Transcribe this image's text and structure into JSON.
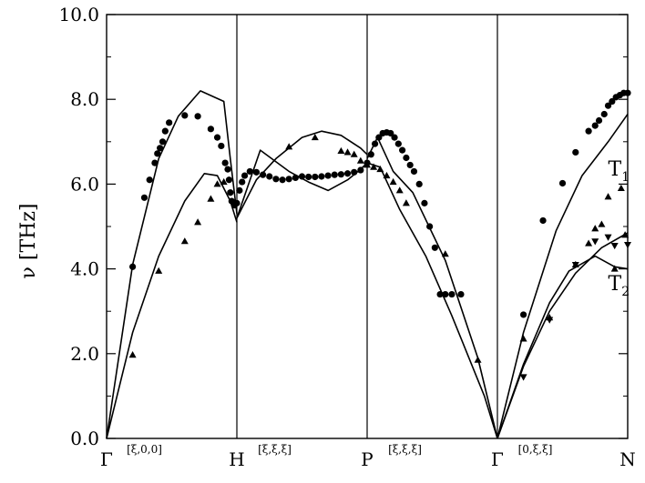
{
  "chart_data": {
    "type": "line",
    "title": "",
    "ylabel": "ν [THz]",
    "ylim": [
      0,
      10
    ],
    "yticks": [
      "0.0",
      "2.0",
      "4.0",
      "6.0",
      "8.0",
      "10.0"
    ],
    "x_symmetry_points": [
      {
        "label": "Γ",
        "x": 0
      },
      {
        "label": "H",
        "x": 1
      },
      {
        "label": "P",
        "x": 2
      },
      {
        "label": "Γ",
        "x": 3
      },
      {
        "label": "N",
        "x": 4
      }
    ],
    "segment_labels": [
      {
        "label": "[ξ,0,0]",
        "x": 0.5
      },
      {
        "label": "[ξ,ξ,ξ]",
        "x": 1.5
      },
      {
        "label": "[ξ,ξ,ξ]",
        "x": 2.5
      },
      {
        "label": "[0,ξ,ξ]",
        "x": 3.5
      }
    ],
    "branch_labels": [
      {
        "main": "T",
        "sub": "1",
        "x": 3.85,
        "y": 6.2
      },
      {
        "main": "T",
        "sub": "2",
        "x": 3.85,
        "y": 3.5
      }
    ],
    "series": [
      {
        "kind": "line",
        "x": [
          0,
          0.2,
          0.4,
          0.55,
          0.72,
          0.9,
          0.95,
          1
        ],
        "y": [
          0,
          4.1,
          6.6,
          7.6,
          8.2,
          7.95,
          6.6,
          5.3
        ]
      },
      {
        "kind": "line",
        "x": [
          0,
          0.2,
          0.4,
          0.6,
          0.75,
          0.85,
          0.95,
          1
        ],
        "y": [
          0,
          2.5,
          4.3,
          5.6,
          6.25,
          6.2,
          5.6,
          5.1
        ]
      },
      {
        "kind": "line",
        "x": [
          1,
          1.18,
          1.4,
          1.55,
          1.7,
          1.85,
          1.95,
          2
        ],
        "y": [
          5.2,
          6.8,
          6.3,
          6.05,
          5.85,
          6.1,
          6.35,
          6.5
        ]
      },
      {
        "kind": "line",
        "x": [
          1,
          1.15,
          1.3,
          1.5,
          1.65,
          1.8,
          1.95,
          2
        ],
        "y": [
          5.2,
          6.1,
          6.6,
          7.1,
          7.25,
          7.15,
          6.85,
          6.7
        ]
      },
      {
        "kind": "line",
        "x": [
          2,
          2.08,
          2.2,
          2.35,
          2.6,
          2.85,
          3
        ],
        "y": [
          6.6,
          7.1,
          6.3,
          5.8,
          4.2,
          1.9,
          0
        ]
      },
      {
        "kind": "line",
        "x": [
          2,
          2.1,
          2.25,
          2.45,
          2.65,
          2.9,
          3
        ],
        "y": [
          6.5,
          6.4,
          5.4,
          4.3,
          2.9,
          1.0,
          0
        ]
      },
      {
        "kind": "line",
        "x": [
          3,
          3.2,
          3.45,
          3.65,
          3.85,
          4
        ],
        "y": [
          0,
          2.5,
          4.9,
          6.2,
          7.0,
          7.65
        ]
      },
      {
        "kind": "line",
        "x": [
          3,
          3.2,
          3.4,
          3.6,
          3.8,
          4
        ],
        "y": [
          0,
          1.7,
          3.0,
          3.9,
          4.5,
          4.85
        ]
      },
      {
        "kind": "line",
        "x": [
          3,
          3.2,
          3.4,
          3.55,
          3.75,
          3.9,
          4
        ],
        "y": [
          0,
          1.75,
          3.2,
          3.95,
          4.3,
          4.05,
          4.0
        ]
      },
      {
        "kind": "scatter",
        "marker": "circle",
        "x": [
          0.2,
          0.29,
          0.33,
          0.37,
          0.39,
          0.41,
          0.43,
          0.45,
          0.48,
          0.6,
          0.7,
          0.8,
          0.85,
          0.88,
          0.91,
          0.93,
          0.94,
          0.95,
          0.96,
          0.98,
          1.0,
          1.02,
          1.04,
          1.06,
          1.1,
          1.15,
          1.2,
          1.25,
          1.3,
          1.35,
          1.4,
          1.45,
          1.5,
          1.55,
          1.6,
          1.65,
          1.7,
          1.75,
          1.8,
          1.85,
          1.9,
          1.95,
          2.0,
          2.03,
          2.06,
          2.09,
          2.12,
          2.15,
          2.18,
          2.21,
          2.24,
          2.27,
          2.3,
          2.33,
          2.36,
          2.4,
          2.44,
          2.48,
          2.52,
          2.56,
          2.6,
          2.65,
          2.72,
          3.2,
          3.35,
          3.5,
          3.6,
          3.7,
          3.75,
          3.78,
          3.82,
          3.85,
          3.88,
          3.91,
          3.94,
          3.97,
          4.0
        ],
        "y": [
          4.05,
          5.68,
          6.1,
          6.5,
          6.72,
          6.85,
          7.0,
          7.25,
          7.45,
          7.62,
          7.6,
          7.3,
          7.1,
          6.9,
          6.5,
          6.35,
          6.1,
          5.8,
          5.6,
          5.5,
          5.55,
          5.85,
          6.05,
          6.2,
          6.3,
          6.28,
          6.22,
          6.18,
          6.12,
          6.1,
          6.12,
          6.15,
          6.18,
          6.17,
          6.17,
          6.18,
          6.2,
          6.22,
          6.23,
          6.25,
          6.28,
          6.33,
          6.5,
          6.7,
          6.95,
          7.1,
          7.2,
          7.22,
          7.2,
          7.1,
          6.95,
          6.8,
          6.62,
          6.45,
          6.3,
          6.0,
          5.55,
          5.0,
          4.5,
          3.4,
          3.4,
          3.4,
          3.4,
          2.92,
          5.14,
          6.02,
          6.75,
          7.25,
          7.38,
          7.5,
          7.65,
          7.85,
          7.95,
          8.05,
          8.1,
          8.15,
          8.15
        ]
      },
      {
        "kind": "scatter",
        "marker": "triangle-up",
        "x": [
          0.2,
          0.4,
          0.6,
          0.7,
          0.8,
          0.85,
          0.9,
          1.4,
          1.6,
          1.8,
          1.85,
          1.9,
          1.95,
          2.0,
          2.05,
          2.1,
          2.15,
          2.2,
          2.25,
          2.3,
          2.6,
          2.85,
          3.2,
          3.4,
          3.6,
          3.7,
          3.75,
          3.8,
          3.85,
          3.9,
          3.95,
          3.98
        ],
        "y": [
          1.97,
          3.95,
          4.65,
          5.1,
          5.65,
          6.0,
          6.05,
          6.88,
          7.1,
          6.78,
          6.75,
          6.7,
          6.55,
          6.45,
          6.4,
          6.35,
          6.2,
          6.05,
          5.85,
          5.55,
          4.35,
          1.85,
          2.35,
          2.85,
          4.1,
          4.6,
          4.95,
          5.05,
          5.7,
          4.0,
          5.9,
          4.8
        ]
      },
      {
        "kind": "scatter",
        "marker": "triangle-down",
        "x": [
          3.2,
          3.4,
          3.6,
          3.75,
          3.85,
          3.9,
          4.0
        ],
        "y": [
          1.45,
          2.8,
          4.1,
          4.65,
          4.75,
          4.55,
          4.57
        ]
      }
    ]
  }
}
